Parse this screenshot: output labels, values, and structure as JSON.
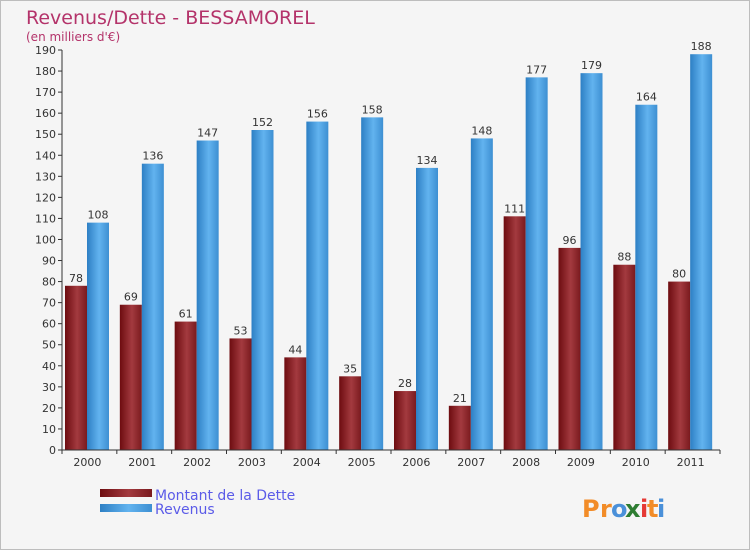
{
  "chart_data": {
    "type": "bar",
    "title": "Revenus/Dette - BESSAMOREL",
    "subtitle": "(en milliers d'€)",
    "categories": [
      "2000",
      "2001",
      "2002",
      "2003",
      "2004",
      "2005",
      "2006",
      "2007",
      "2008",
      "2009",
      "2010",
      "2011"
    ],
    "series": [
      {
        "name": "Montant de la Dette",
        "color": "#8b2020",
        "values": [
          78,
          69,
          61,
          53,
          44,
          35,
          28,
          21,
          111,
          96,
          88,
          80
        ]
      },
      {
        "name": "Revenus",
        "color": "#4ea3e6",
        "values": [
          108,
          136,
          147,
          152,
          156,
          158,
          134,
          148,
          177,
          179,
          164,
          188
        ]
      }
    ],
    "ylim": [
      0,
      190
    ],
    "yticks": [
      0,
      10,
      20,
      30,
      40,
      50,
      60,
      70,
      80,
      90,
      100,
      110,
      120,
      130,
      140,
      150,
      160,
      170,
      180,
      190
    ],
    "grid": false,
    "legend": "bottom-left"
  },
  "brand": {
    "logo_text": "Proxiti",
    "letters": [
      "P",
      "r",
      "o",
      "x",
      "i",
      "t",
      "i"
    ],
    "colors": [
      "#f28c28",
      "#f28c28",
      "#4a90d9",
      "#2e7d32",
      "#e53935",
      "#f28c28",
      "#4a90d9"
    ]
  }
}
